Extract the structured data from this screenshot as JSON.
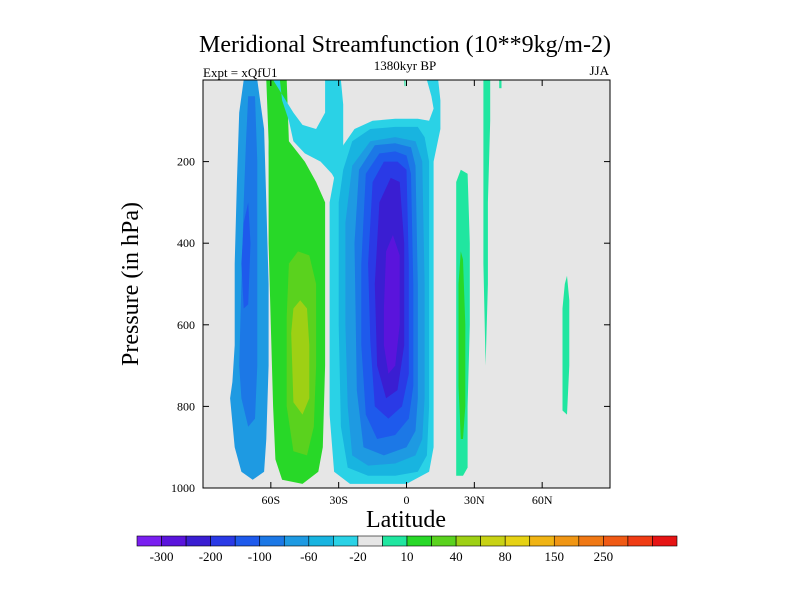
{
  "chart_data": {
    "type": "heatmap",
    "title": "Meridional Streamfunction (10**9kg/m-2)",
    "left_label": "Expt = xQfU1",
    "center_label": "1380kyr BP",
    "right_label": "JJA",
    "xlabel": "Latitude",
    "ylabel": "Pressure (in hPa)",
    "xlim": [
      -90,
      90
    ],
    "ylim": [
      1000,
      0
    ],
    "x_ticks": [
      {
        "value": -60,
        "label": "60S"
      },
      {
        "value": -30,
        "label": "30S"
      },
      {
        "value": 0,
        "label": "0"
      },
      {
        "value": 30,
        "label": "30N"
      },
      {
        "value": 60,
        "label": "60N"
      }
    ],
    "y_ticks": [
      {
        "value": 200,
        "label": "200"
      },
      {
        "value": 400,
        "label": "400"
      },
      {
        "value": 600,
        "label": "600"
      },
      {
        "value": 800,
        "label": "800"
      },
      {
        "value": 1000,
        "label": "1000"
      }
    ],
    "colorbar": {
      "colors": [
        "#7a1ff0",
        "#5a14dc",
        "#3a1ed2",
        "#2a3ae6",
        "#1e5aec",
        "#1c78e6",
        "#1e9ae2",
        "#18b4e0",
        "#2ad2e6",
        "#e6e6e6",
        "#20e6a0",
        "#28d828",
        "#5ad21e",
        "#9ed014",
        "#c8d214",
        "#e6d214",
        "#f0b414",
        "#f09614",
        "#f07814",
        "#f05a14",
        "#f03c14",
        "#e61414"
      ],
      "labels": [
        {
          "after_box": 1,
          "text": "-300"
        },
        {
          "after_box": 3,
          "text": "-200"
        },
        {
          "after_box": 5,
          "text": "-100"
        },
        {
          "after_box": 7,
          "text": "-60"
        },
        {
          "after_box": 9,
          "text": "-20"
        },
        {
          "after_box": 11,
          "text": "10"
        },
        {
          "after_box": 13,
          "text": "40"
        },
        {
          "after_box": 15,
          "text": "80"
        },
        {
          "after_box": 17,
          "text": "150"
        },
        {
          "after_box": 19,
          "text": "250"
        }
      ]
    },
    "regions": [
      {
        "color": "#1e9ae2",
        "points": [
          [
            -78,
            780
          ],
          [
            -77,
            740
          ],
          [
            -76,
            650
          ],
          [
            -76,
            450
          ],
          [
            -75,
            250
          ],
          [
            -74,
            80
          ],
          [
            -72,
            0
          ],
          [
            -66,
            0
          ],
          [
            -63,
            120
          ],
          [
            -62,
            300
          ],
          [
            -61,
            500
          ],
          [
            -61,
            700
          ],
          [
            -62,
            880
          ],
          [
            -63,
            960
          ],
          [
            -68,
            980
          ],
          [
            -73,
            960
          ],
          [
            -76,
            900
          ]
        ]
      },
      {
        "color": "#1c78e6",
        "points": [
          [
            -74,
            700
          ],
          [
            -73,
            500
          ],
          [
            -72,
            300
          ],
          [
            -71,
            150
          ],
          [
            -70,
            40
          ],
          [
            -67,
            40
          ],
          [
            -66,
            200
          ],
          [
            -66,
            450
          ],
          [
            -66,
            700
          ],
          [
            -67,
            830
          ],
          [
            -70,
            850
          ],
          [
            -73,
            780
          ]
        ]
      },
      {
        "color": "#1e5aec",
        "points": [
          [
            -73,
            450
          ],
          [
            -72,
            350
          ],
          [
            -70,
            300
          ],
          [
            -69,
            400
          ],
          [
            -70,
            550
          ],
          [
            -72,
            560
          ]
        ]
      },
      {
        "color": "#18b4e0",
        "points": [
          [
            -60,
            0
          ],
          [
            -54,
            0
          ],
          [
            -53,
            200
          ],
          [
            -55,
            320
          ],
          [
            -59,
            330
          ],
          [
            -61,
            180
          ]
        ]
      },
      {
        "color": "#28d828",
        "points": [
          [
            -62,
            0
          ],
          [
            -53,
            0
          ],
          [
            -52,
            150
          ],
          [
            -45,
            200
          ],
          [
            -40,
            250
          ],
          [
            -36,
            300
          ],
          [
            -36,
            500
          ],
          [
            -36,
            700
          ],
          [
            -37,
            900
          ],
          [
            -39,
            960
          ],
          [
            -46,
            990
          ],
          [
            -55,
            980
          ],
          [
            -58,
            930
          ],
          [
            -59,
            800
          ],
          [
            -60,
            600
          ],
          [
            -61,
            400
          ],
          [
            -61,
            150
          ]
        ]
      },
      {
        "color": "#5ad21e",
        "points": [
          [
            -53,
            580
          ],
          [
            -52,
            450
          ],
          [
            -48,
            420
          ],
          [
            -43,
            430
          ],
          [
            -40,
            500
          ],
          [
            -40,
            700
          ],
          [
            -41,
            850
          ],
          [
            -44,
            920
          ],
          [
            -50,
            910
          ],
          [
            -53,
            800
          ]
        ]
      },
      {
        "color": "#9ed014",
        "points": [
          [
            -51,
            620
          ],
          [
            -50,
            560
          ],
          [
            -47,
            540
          ],
          [
            -44,
            560
          ],
          [
            -43,
            650
          ],
          [
            -43,
            780
          ],
          [
            -46,
            820
          ],
          [
            -50,
            790
          ]
        ]
      },
      {
        "color": "#2ad2e6",
        "points": [
          [
            -59,
            0
          ],
          [
            -56,
            0
          ],
          [
            -55,
            50
          ],
          [
            -52,
            100
          ],
          [
            -50,
            150
          ],
          [
            -45,
            180
          ],
          [
            -38,
            200
          ],
          [
            -33,
            230
          ],
          [
            -30,
            260
          ],
          [
            -27,
            340
          ],
          [
            -28,
            180
          ],
          [
            -28,
            60
          ],
          [
            -29,
            0
          ],
          [
            -36,
            0
          ],
          [
            -36,
            80
          ],
          [
            -40,
            120
          ],
          [
            -46,
            110
          ],
          [
            -50,
            80
          ]
        ]
      },
      {
        "color": "#2ad2e6",
        "points": [
          [
            -34,
            300
          ],
          [
            -32,
            240
          ],
          [
            -28,
            160
          ],
          [
            -23,
            120
          ],
          [
            -15,
            100
          ],
          [
            -5,
            95
          ],
          [
            5,
            95
          ],
          [
            10,
            100
          ],
          [
            12,
            70
          ],
          [
            11,
            40
          ],
          [
            9,
            0
          ],
          [
            14,
            0
          ],
          [
            15,
            50
          ],
          [
            15,
            120
          ],
          [
            12,
            200
          ],
          [
            12,
            400
          ],
          [
            12,
            700
          ],
          [
            12,
            900
          ],
          [
            10,
            960
          ],
          [
            0,
            990
          ],
          [
            -10,
            990
          ],
          [
            -25,
            990
          ],
          [
            -32,
            960
          ],
          [
            -34,
            820
          ],
          [
            -34,
            600
          ]
        ]
      },
      {
        "color": "#18b4e0",
        "points": [
          [
            -30,
            300
          ],
          [
            -28,
            220
          ],
          [
            -24,
            150
          ],
          [
            -16,
            120
          ],
          [
            -5,
            115
          ],
          [
            5,
            115
          ],
          [
            8,
            140
          ],
          [
            10,
            200
          ],
          [
            10,
            500
          ],
          [
            10,
            800
          ],
          [
            9,
            920
          ],
          [
            5,
            960
          ],
          [
            -5,
            970
          ],
          [
            -17,
            970
          ],
          [
            -26,
            950
          ],
          [
            -29,
            850
          ],
          [
            -30,
            600
          ]
        ]
      },
      {
        "color": "#1e9ae2",
        "points": [
          [
            -27,
            350
          ],
          [
            -24,
            210
          ],
          [
            -16,
            150
          ],
          [
            -5,
            140
          ],
          [
            4,
            150
          ],
          [
            7,
            200
          ],
          [
            8,
            500
          ],
          [
            8,
            780
          ],
          [
            7,
            880
          ],
          [
            4,
            920
          ],
          [
            -5,
            940
          ],
          [
            -17,
            945
          ],
          [
            -24,
            920
          ],
          [
            -26,
            800
          ],
          [
            -27,
            600
          ]
        ]
      },
      {
        "color": "#1c78e6",
        "points": [
          [
            -23,
            400
          ],
          [
            -21,
            220
          ],
          [
            -14,
            160
          ],
          [
            -5,
            155
          ],
          [
            2,
            165
          ],
          [
            4,
            210
          ],
          [
            5,
            500
          ],
          [
            5,
            780
          ],
          [
            4,
            860
          ],
          [
            0,
            900
          ],
          [
            -10,
            920
          ],
          [
            -19,
            900
          ],
          [
            -22,
            760
          ]
        ]
      },
      {
        "color": "#1e5aec",
        "points": [
          [
            -20,
            450
          ],
          [
            -18,
            230
          ],
          [
            -12,
            180
          ],
          [
            -5,
            175
          ],
          [
            0,
            185
          ],
          [
            2,
            230
          ],
          [
            3,
            500
          ],
          [
            3,
            750
          ],
          [
            1,
            830
          ],
          [
            -5,
            870
          ],
          [
            -13,
            880
          ],
          [
            -18,
            820
          ],
          [
            -20,
            650
          ]
        ]
      },
      {
        "color": "#2a3ae6",
        "points": [
          [
            -17,
            450
          ],
          [
            -15,
            250
          ],
          [
            -10,
            200
          ],
          [
            -4,
            200
          ],
          [
            0,
            220
          ],
          [
            1,
            450
          ],
          [
            1,
            720
          ],
          [
            -2,
            800
          ],
          [
            -8,
            830
          ],
          [
            -14,
            800
          ],
          [
            -16,
            640
          ]
        ]
      },
      {
        "color": "#3a1ed2",
        "points": [
          [
            -14,
            500
          ],
          [
            -12,
            300
          ],
          [
            -7,
            240
          ],
          [
            -3,
            250
          ],
          [
            -1,
            400
          ],
          [
            -1,
            650
          ],
          [
            -4,
            760
          ],
          [
            -9,
            780
          ],
          [
            -13,
            700
          ]
        ]
      },
      {
        "color": "#5a14dc",
        "points": [
          [
            -10,
            560
          ],
          [
            -9,
            420
          ],
          [
            -6,
            380
          ],
          [
            -3,
            430
          ],
          [
            -3,
            600
          ],
          [
            -5,
            700
          ],
          [
            -8,
            720
          ],
          [
            -10,
            650
          ]
        ]
      },
      {
        "color": "#20e6a0",
        "points": [
          [
            -1,
            0
          ],
          [
            -0.5,
            0
          ],
          [
            -0.4,
            15
          ],
          [
            -0.9,
            15
          ]
        ]
      },
      {
        "color": "#20e6a0",
        "points": [
          [
            22,
            250
          ],
          [
            24,
            220
          ],
          [
            27,
            230
          ],
          [
            28,
            400
          ],
          [
            28,
            600
          ],
          [
            27,
            800
          ],
          [
            27,
            950
          ],
          [
            25,
            970
          ],
          [
            22,
            970
          ],
          [
            22,
            800
          ],
          [
            22,
            500
          ]
        ]
      },
      {
        "color": "#28d828",
        "points": [
          [
            23,
            500
          ],
          [
            24,
            420
          ],
          [
            25,
            440
          ],
          [
            26,
            600
          ],
          [
            26,
            800
          ],
          [
            25,
            880
          ],
          [
            24,
            880
          ],
          [
            23,
            750
          ]
        ]
      },
      {
        "color": "#20e6a0",
        "points": [
          [
            34,
            0
          ],
          [
            37,
            0
          ],
          [
            37,
            100
          ],
          [
            36,
            300
          ],
          [
            36,
            500
          ],
          [
            35,
            700
          ],
          [
            34,
            450
          ],
          [
            34,
            250
          ],
          [
            34,
            100
          ]
        ]
      },
      {
        "color": "#20e6a0",
        "points": [
          [
            41,
            0
          ],
          [
            42,
            0
          ],
          [
            42,
            20
          ],
          [
            41,
            20
          ]
        ]
      },
      {
        "color": "#20e6a0",
        "points": [
          [
            69,
            760
          ],
          [
            69,
            560
          ],
          [
            70,
            500
          ],
          [
            71,
            480
          ],
          [
            72,
            540
          ],
          [
            72,
            700
          ],
          [
            71,
            820
          ],
          [
            69,
            810
          ]
        ]
      }
    ]
  }
}
